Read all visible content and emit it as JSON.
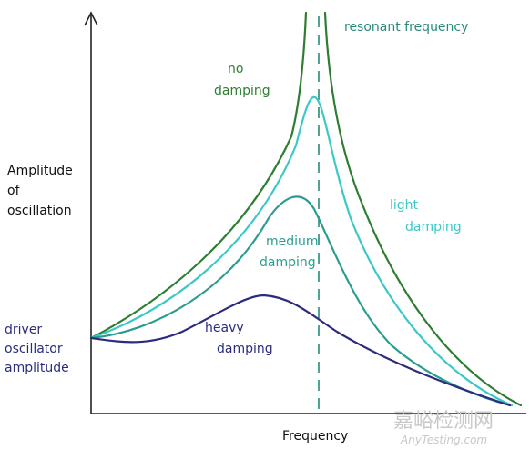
{
  "axes": {
    "y_label": [
      "Amplitude",
      "of",
      "oscillation"
    ],
    "x_label": "Frequency"
  },
  "resonance_label": "resonant frequency",
  "curves": [
    {
      "label": [
        "no",
        "damping"
      ]
    },
    {
      "label": [
        "light",
        "damping"
      ]
    },
    {
      "label": [
        "medium",
        "damping"
      ]
    },
    {
      "label": [
        "heavy",
        "damping"
      ]
    }
  ],
  "driver_label": [
    "driver",
    "oscillator",
    "amplitude"
  ],
  "watermark": {
    "title": "嘉峪检测网",
    "url": "AnyTesting.com"
  }
}
